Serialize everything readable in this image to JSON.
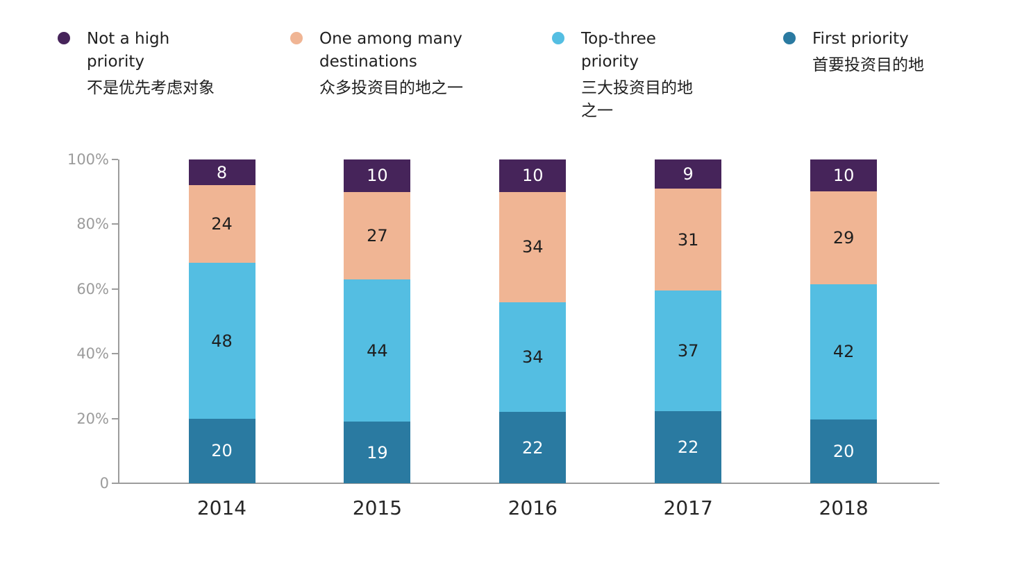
{
  "colors": {
    "first_priority": "#2A7AA1",
    "top_three_priority": "#54BEE2",
    "one_among_many": "#F0B594",
    "not_a_high_priority": "#46245A",
    "axis_line": "#9C9C9C",
    "axis_label": "#9B9B9B",
    "x_label": "#262626",
    "value_label_dark": "#1F1F1F",
    "value_label_light": "#FFFFFF"
  },
  "legend": {
    "items": [
      {
        "key": "not-a-high-priority",
        "color": "#46245A",
        "en": "Not a high\npriority",
        "zh": "不是优先考虑对象"
      },
      {
        "key": "one-among-many-destinations",
        "color": "#F0B594",
        "en": "One among many\ndestinations",
        "zh": "众多投资目的地之一"
      },
      {
        "key": "top-three-priority",
        "color": "#54BEE2",
        "en": "Top-three\npriority",
        "zh": "三大投资目的地\n之一"
      },
      {
        "key": "first-priority",
        "color": "#2A7AA1",
        "en": "First priority",
        "zh": "首要投资目的地"
      }
    ]
  },
  "chart_data": {
    "type": "bar",
    "stacked": true,
    "unit": "%",
    "categories": [
      "2014",
      "2015",
      "2016",
      "2017",
      "2018"
    ],
    "series": [
      {
        "key": "first-priority",
        "name": "First priority 首要投资目的地",
        "color": "#2A7AA1",
        "text_color": "#FFFFFF",
        "values": [
          20,
          19,
          22,
          22,
          20
        ]
      },
      {
        "key": "top-three-priority",
        "name": "Top-three priority 三大投资目的地之一",
        "color": "#54BEE2",
        "text_color": "#1F1F1F",
        "values": [
          48,
          44,
          34,
          37,
          42
        ]
      },
      {
        "key": "one-among-many-destinations",
        "name": "One among many destinations 众多投资目的地之一",
        "color": "#F0B594",
        "text_color": "#1F1F1F",
        "values": [
          24,
          27,
          34,
          31,
          29
        ]
      },
      {
        "key": "not-a-high-priority",
        "name": "Not a high priority 不是优先考虑对象",
        "color": "#46245A",
        "text_color": "#FFFFFF",
        "values": [
          8,
          10,
          10,
          9,
          10
        ]
      }
    ],
    "y_axis": {
      "min": 0,
      "max": 100,
      "tick_labels": [
        "0",
        "20%",
        "40%",
        "60%",
        "80%",
        "100%"
      ]
    },
    "xlabel": "",
    "ylabel": "",
    "title": "",
    "grid": false,
    "legend_position": "top"
  }
}
